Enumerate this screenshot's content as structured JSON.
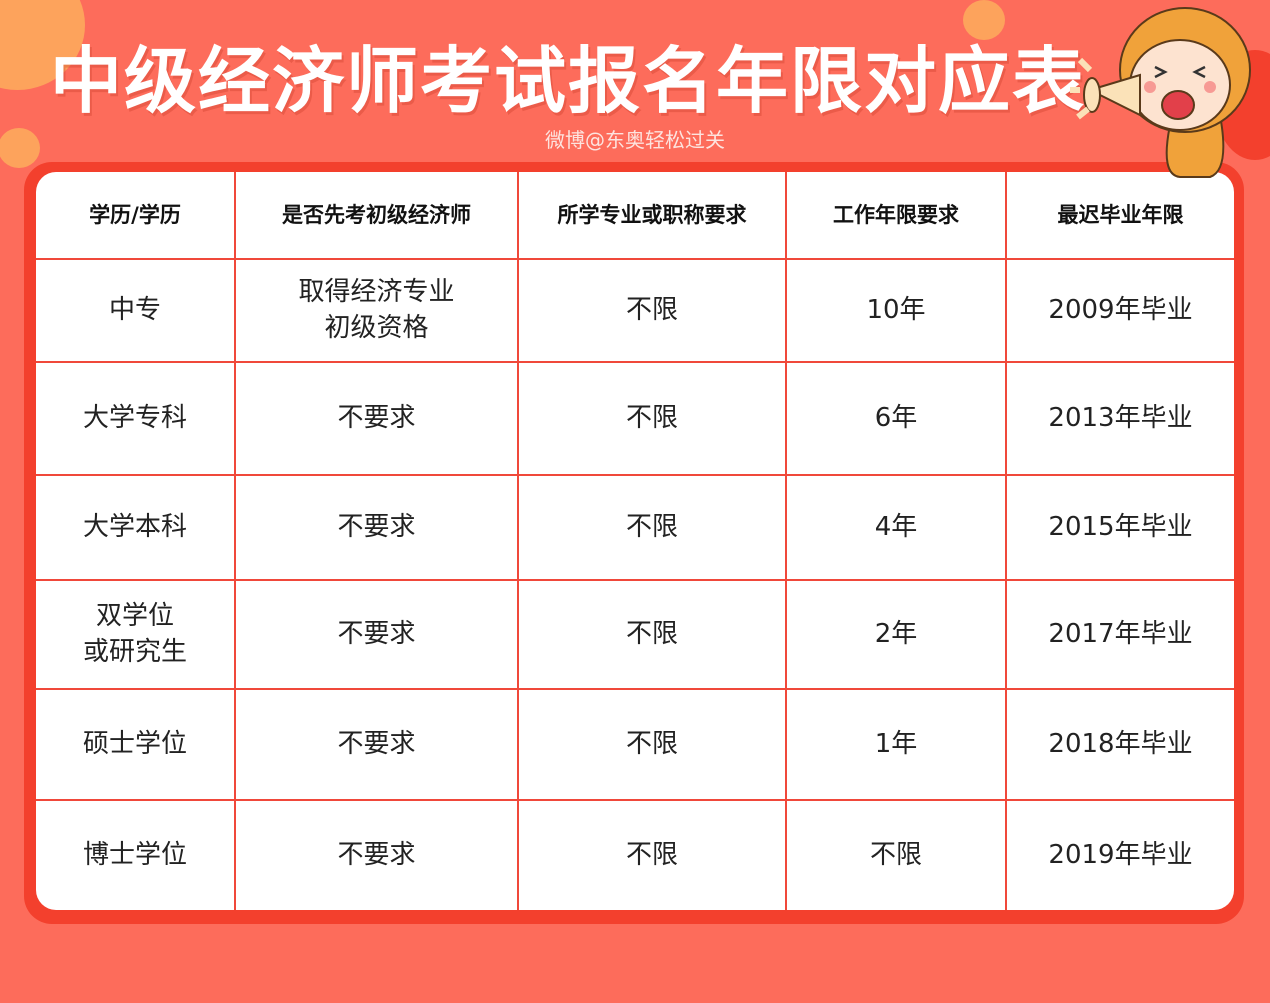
{
  "header": {
    "title": "中级经济师考试报名年限对应表",
    "subtitle": "微博@东奥轻松过关"
  },
  "colors": {
    "background": "#fd6c5b",
    "frame": "#f3402d",
    "grid": "#f0483a",
    "accent_circle": "#fda35c"
  },
  "table": {
    "columns": [
      "学历/学历",
      "是否先考初级经济师",
      "所学专业或职称要求",
      "工作年限要求",
      "最迟毕业年限"
    ],
    "rows": [
      [
        "中专",
        "取得经济专业\n初级资格",
        "不限",
        "10年",
        "2009年毕业"
      ],
      [
        "大学专科",
        "不要求",
        "不限",
        "6年",
        "2013年毕业"
      ],
      [
        "大学本科",
        "不要求",
        "不限",
        "4年",
        "2015年毕业"
      ],
      [
        "双学位\n或研究生",
        "不要求",
        "不限",
        "2年",
        "2017年毕业"
      ],
      [
        "硕士学位",
        "不要求",
        "不限",
        "1年",
        "2018年毕业"
      ],
      [
        "博士学位",
        "不要求",
        "不限",
        "不限",
        "2019年毕业"
      ]
    ]
  },
  "mascot": {
    "icon": "cartoon-megaphone-mascot"
  }
}
